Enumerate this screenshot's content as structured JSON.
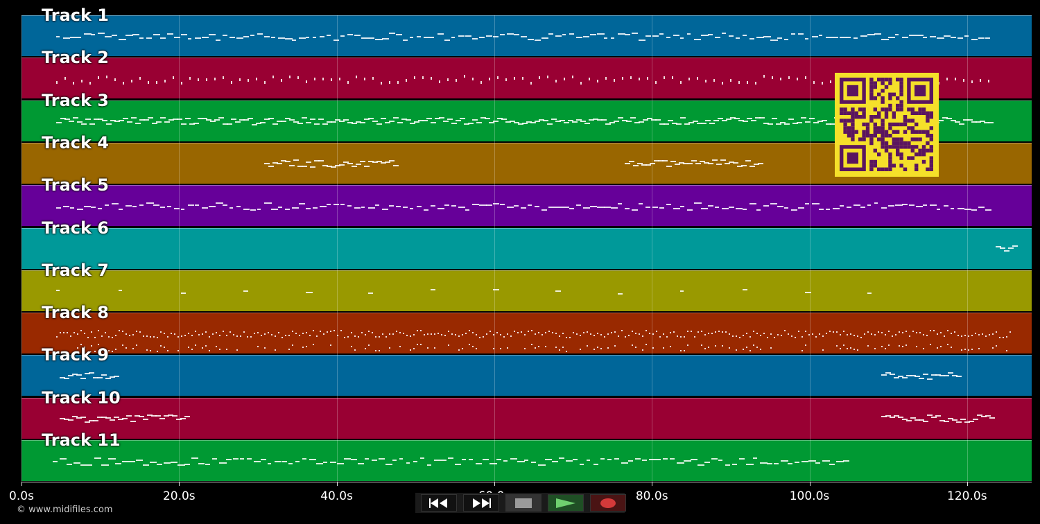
{
  "tracks": [
    {
      "label": "Track 1",
      "color": "#006699"
    },
    {
      "label": "Track 2",
      "color": "#990033"
    },
    {
      "label": "Track 3",
      "color": "#009933"
    },
    {
      "label": "Track 4",
      "color": "#996600"
    },
    {
      "label": "Track 5",
      "color": "#660099"
    },
    {
      "label": "Track 6",
      "color": "#009999"
    },
    {
      "label": "Track 7",
      "color": "#999900"
    },
    {
      "label": "Track 8",
      "color": "#992900"
    },
    {
      "label": "Track 9",
      "color": "#006699"
    },
    {
      "label": "Track 10",
      "color": "#990033"
    },
    {
      "label": "Track 11",
      "color": "#009933"
    }
  ],
  "timeline": {
    "ticks": [
      "0.0s",
      "20.0s",
      "40.0s",
      "60.0s",
      "80.0s",
      "100.0s",
      "120.0s"
    ],
    "max_seconds": 128.2
  },
  "footer": {
    "copyright": "© www.midifiles.com"
  },
  "controls": {
    "rewind": "rewind-icon",
    "fast_forward": "fast-forward-icon",
    "stop": "stop-icon",
    "play": "play-icon",
    "record": "record-icon"
  },
  "qr": {
    "fg": "#5a1560",
    "bg": "#f5e02a"
  }
}
